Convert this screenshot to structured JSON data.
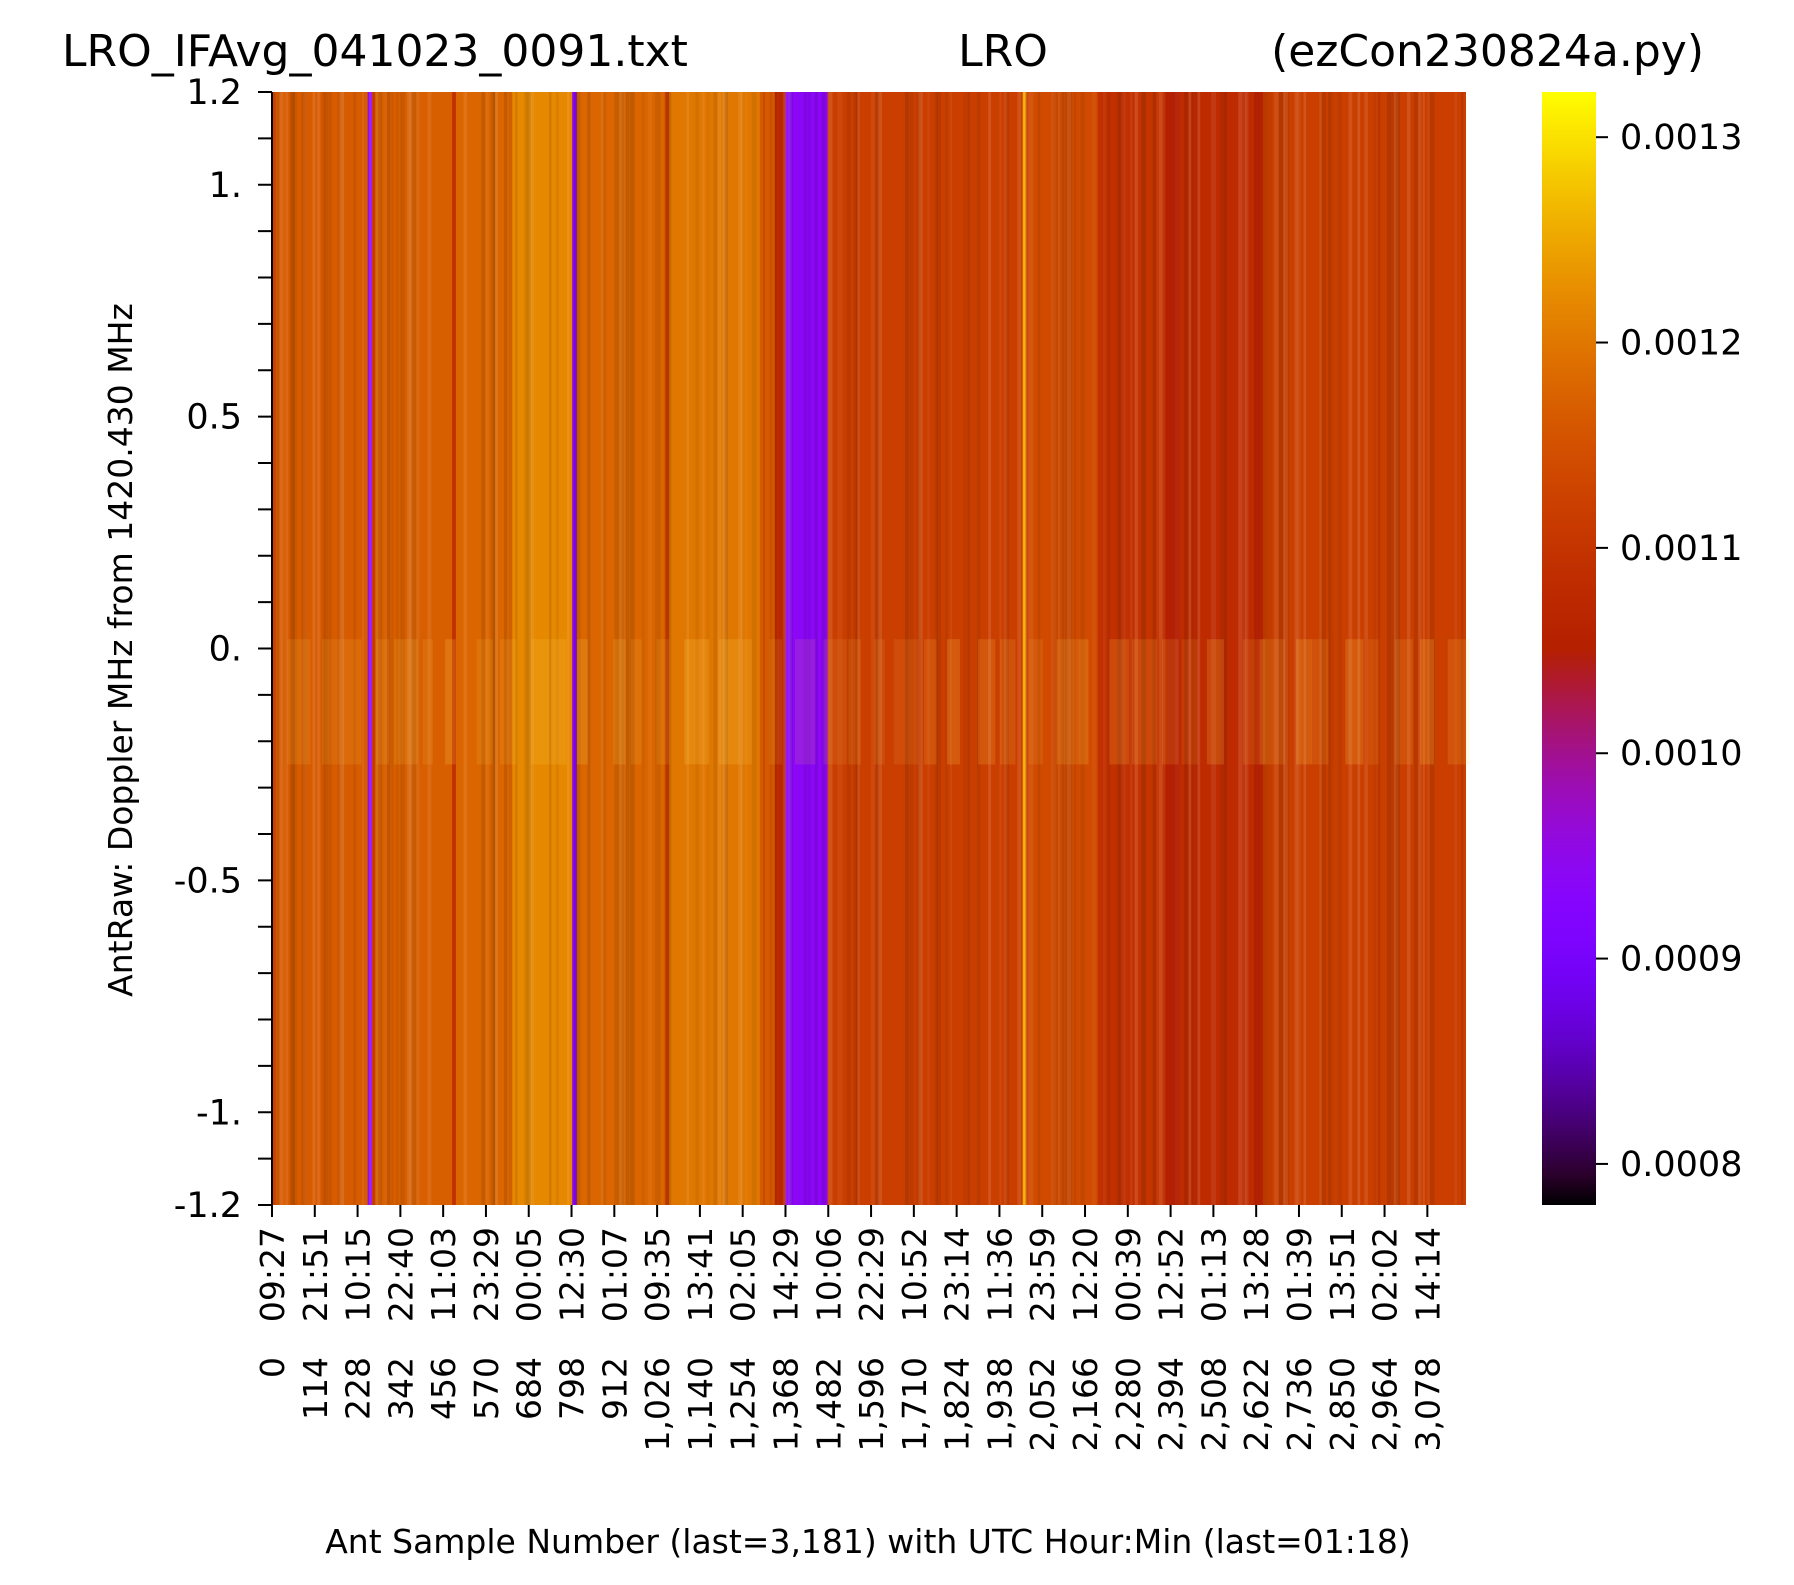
{
  "chart_data": {
    "type": "heatmap",
    "title_left": "LRO_IFAvg_041023_0091.txt",
    "title_center": "LRO",
    "title_right": "(ezCon230824a.py)",
    "xlabel": "Ant Sample Number (last=3,181) with UTC Hour:Min (last=01:18)",
    "ylabel": "AntRaw:  Doppler MHz from 1420.430 MHz",
    "x_range": [
      0,
      3181
    ],
    "y_range": [
      -1.2,
      1.2
    ],
    "y_ticks": [
      {
        "value": 1.2,
        "label": "1.2"
      },
      {
        "value": 1.0,
        "label": "1."
      },
      {
        "value": 0.5,
        "label": "0.5"
      },
      {
        "value": 0.0,
        "label": "0."
      },
      {
        "value": -0.5,
        "label": "-0.5"
      },
      {
        "value": -1.0,
        "label": "-1."
      },
      {
        "value": -1.2,
        "label": "-1.2"
      }
    ],
    "x_ticks": [
      {
        "sample": 0,
        "label": "0",
        "time": "09:27"
      },
      {
        "sample": 114,
        "label": "114",
        "time": "21:51"
      },
      {
        "sample": 228,
        "label": "228",
        "time": "10:15"
      },
      {
        "sample": 342,
        "label": "342",
        "time": "22:40"
      },
      {
        "sample": 456,
        "label": "456",
        "time": "11:03"
      },
      {
        "sample": 570,
        "label": "570",
        "time": "23:29"
      },
      {
        "sample": 684,
        "label": "684",
        "time": "00:05"
      },
      {
        "sample": 798,
        "label": "798",
        "time": "12:30"
      },
      {
        "sample": 912,
        "label": "912",
        "time": "01:07"
      },
      {
        "sample": 1026,
        "label": "1,026",
        "time": "09:35"
      },
      {
        "sample": 1140,
        "label": "1,140",
        "time": "13:41"
      },
      {
        "sample": 1254,
        "label": "1,254",
        "time": "02:05"
      },
      {
        "sample": 1368,
        "label": "1,368",
        "time": "14:29"
      },
      {
        "sample": 1482,
        "label": "1,482",
        "time": "10:06"
      },
      {
        "sample": 1596,
        "label": "1,596",
        "time": "22:29"
      },
      {
        "sample": 1710,
        "label": "1,710",
        "time": "10:52"
      },
      {
        "sample": 1824,
        "label": "1,824",
        "time": "23:14"
      },
      {
        "sample": 1938,
        "label": "1,938",
        "time": "11:36"
      },
      {
        "sample": 2052,
        "label": "2,052",
        "time": "23:59"
      },
      {
        "sample": 2166,
        "label": "2,166",
        "time": "12:20"
      },
      {
        "sample": 2280,
        "label": "2,280",
        "time": "00:39"
      },
      {
        "sample": 2394,
        "label": "2,394",
        "time": "12:52"
      },
      {
        "sample": 2508,
        "label": "2,508",
        "time": "01:13"
      },
      {
        "sample": 2622,
        "label": "2,622",
        "time": "13:28"
      },
      {
        "sample": 2736,
        "label": "2,736",
        "time": "01:39"
      },
      {
        "sample": 2850,
        "label": "2,850",
        "time": "13:51"
      },
      {
        "sample": 2964,
        "label": "2,964",
        "time": "02:02"
      },
      {
        "sample": 3078,
        "label": "3,078",
        "time": "14:14"
      }
    ],
    "colormap": "gnuplot",
    "colorbar": {
      "range": [
        0.00078,
        0.001322
      ],
      "ticks": [
        {
          "value": 0.0008,
          "label": "0.0008"
        },
        {
          "value": 0.0009,
          "label": "0.0009"
        },
        {
          "value": 0.001,
          "label": "0.0010"
        },
        {
          "value": 0.0011,
          "label": "0.0011"
        },
        {
          "value": 0.0012,
          "label": "0.0012"
        },
        {
          "value": 0.0013,
          "label": "0.0013"
        }
      ]
    },
    "band_values": [
      {
        "from": 0,
        "to": 10,
        "value": 0.00112
      },
      {
        "from": 10,
        "to": 255,
        "value": 0.001165
      },
      {
        "from": 255,
        "to": 267,
        "value": 0.00095
      },
      {
        "from": 267,
        "to": 275,
        "value": 0.00111
      },
      {
        "from": 275,
        "to": 480,
        "value": 0.00117
      },
      {
        "from": 480,
        "to": 490,
        "value": 0.00109
      },
      {
        "from": 490,
        "to": 640,
        "value": 0.00118
      },
      {
        "from": 640,
        "to": 800,
        "value": 0.00122
      },
      {
        "from": 800,
        "to": 812,
        "value": 0.00093
      },
      {
        "from": 812,
        "to": 1048,
        "value": 0.00118
      },
      {
        "from": 1048,
        "to": 1058,
        "value": 0.00111
      },
      {
        "from": 1058,
        "to": 1300,
        "value": 0.0012
      },
      {
        "from": 1300,
        "to": 1340,
        "value": 0.00116
      },
      {
        "from": 1340,
        "to": 1368,
        "value": 0.00108
      },
      {
        "from": 1368,
        "to": 1480,
        "value": 0.00094
      },
      {
        "from": 1480,
        "to": 2000,
        "value": 0.00112
      },
      {
        "from": 2000,
        "to": 2008,
        "value": 0.00126
      },
      {
        "from": 2008,
        "to": 2200,
        "value": 0.00114
      },
      {
        "from": 2200,
        "to": 2300,
        "value": 0.00109
      },
      {
        "from": 2300,
        "to": 2380,
        "value": 0.0011
      },
      {
        "from": 2380,
        "to": 2420,
        "value": 0.00105
      },
      {
        "from": 2420,
        "to": 2620,
        "value": 0.00108
      },
      {
        "from": 2620,
        "to": 2640,
        "value": 0.00105
      },
      {
        "from": 2640,
        "to": 3181,
        "value": 0.00112
      }
    ]
  }
}
